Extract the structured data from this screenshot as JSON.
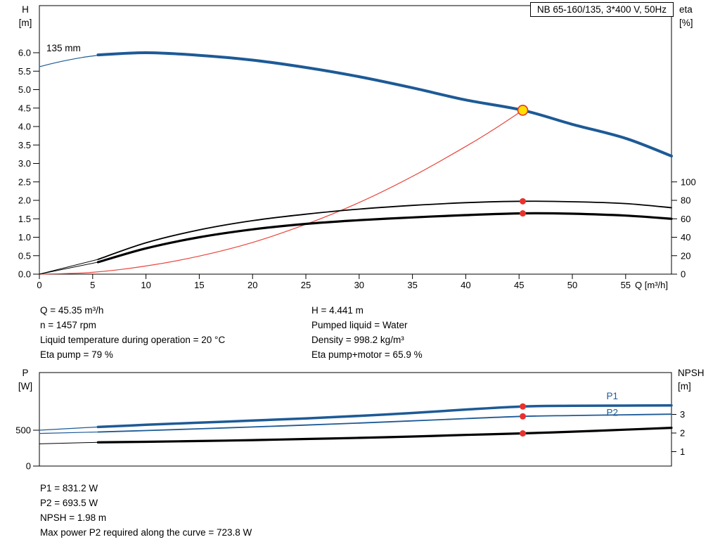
{
  "title_box": "NB 65-160/135, 3*400 V, 50Hz",
  "colors": {
    "curve_blue": "#1d5a96",
    "marker_red": "#e8322e",
    "duty_yellow": "#ffe000",
    "system_red": "#e8463c"
  },
  "chart_data": [
    {
      "type": "line",
      "name": "qh-eta-chart",
      "xlabel": "Q [m³/h]",
      "xlim": [
        0,
        59.3
      ],
      "x_ticks": [
        0,
        5,
        10,
        15,
        20,
        25,
        30,
        35,
        40,
        45,
        50,
        55
      ],
      "left_axis": {
        "label_top": "H",
        "label_unit": "[m]",
        "ticks": [
          "0.0",
          "0.5",
          "1.0",
          "1.5",
          "2.0",
          "2.5",
          "3.0",
          "3.5",
          "4.0",
          "4.5",
          "5.0",
          "5.5",
          "6.0"
        ]
      },
      "right_axis": {
        "label_top": "eta",
        "label_unit": "[%]",
        "ticks": [
          0,
          20,
          40,
          60,
          80,
          100
        ],
        "eta_100_at_H": 2.5
      },
      "impeller_label": "135 mm",
      "series": [
        {
          "name": "head-curve-lead",
          "color": "#1d5a96",
          "width": 1.2,
          "axis": "H",
          "x": [
            0,
            2,
            4,
            5.5
          ],
          "y": [
            5.62,
            5.76,
            5.87,
            5.93
          ]
        },
        {
          "name": "system-curve",
          "color": "#e8463c",
          "width": 1.2,
          "axis": "H",
          "x": [
            0,
            5,
            10,
            15,
            20,
            25,
            30,
            35,
            40,
            42.5,
            45.35
          ],
          "y": [
            0,
            0.05,
            0.22,
            0.49,
            0.86,
            1.35,
            1.94,
            2.65,
            3.46,
            3.9,
            4.441
          ]
        },
        {
          "name": "eta-pump-lead",
          "color": "#000000",
          "width": 1,
          "axis": "eta",
          "x": [
            0,
            5.5
          ],
          "y": [
            0,
            16
          ]
        },
        {
          "name": "eta-pump-motor-lead",
          "color": "#000000",
          "width": 1,
          "axis": "eta",
          "x": [
            0,
            5.5
          ],
          "y": [
            0,
            13
          ]
        },
        {
          "name": "eta-pump-curve",
          "color": "#000000",
          "width": 1.8,
          "axis": "eta",
          "x": [
            5.5,
            10,
            15,
            20,
            25,
            30,
            35,
            40,
            45.35,
            50,
            55,
            59.3
          ],
          "y": [
            16,
            34,
            48,
            58,
            65,
            70.5,
            74.5,
            77.5,
            79,
            78.5,
            76.5,
            72
          ]
        },
        {
          "name": "eta-pump-motor-curve",
          "color": "#000000",
          "width": 3.2,
          "axis": "eta",
          "x": [
            5.5,
            10,
            15,
            20,
            25,
            30,
            35,
            40,
            45.35,
            50,
            55,
            59.3
          ],
          "y": [
            13,
            28,
            40,
            48.5,
            54.5,
            58.5,
            61.5,
            64,
            65.9,
            65.5,
            63.5,
            60
          ]
        },
        {
          "name": "head-curve",
          "color": "#1d5a96",
          "width": 4,
          "axis": "H",
          "x": [
            5.5,
            10,
            15,
            20,
            25,
            30,
            35,
            40,
            45.35,
            50,
            55,
            59.3
          ],
          "y": [
            5.94,
            6.0,
            5.93,
            5.8,
            5.6,
            5.35,
            5.05,
            4.72,
            4.441,
            4.06,
            3.68,
            3.2
          ]
        }
      ],
      "duty_point": {
        "Q": 45.35,
        "H": 4.441
      },
      "eta_markers": [
        {
          "Q": 45.35,
          "eta": 79
        },
        {
          "Q": 45.35,
          "eta": 65.9
        }
      ]
    },
    {
      "type": "line",
      "name": "power-npsh-chart",
      "xlim": [
        0,
        59.3
      ],
      "left_axis": {
        "label_top": "P",
        "label_unit": "[W]",
        "ticks": [
          0,
          500
        ]
      },
      "right_axis": {
        "label_top": "NPSH",
        "label_unit": "[m]",
        "ticks": [
          1,
          2,
          3
        ]
      },
      "series": [
        {
          "name": "p1-lead",
          "color": "#1d5a96",
          "width": 1.2,
          "axis": "P",
          "x": [
            0,
            5.5
          ],
          "y": [
            500,
            545
          ]
        },
        {
          "name": "p2-lead",
          "color": "#1d5a96",
          "width": 1.2,
          "axis": "P",
          "x": [
            0,
            5.5
          ],
          "y": [
            455,
            475
          ]
        },
        {
          "name": "npsh-lead",
          "color": "#000000",
          "width": 1,
          "axis": "NPSH",
          "x": [
            0,
            5.5
          ],
          "y": [
            1.42,
            1.5
          ]
        },
        {
          "name": "p1-curve",
          "color": "#1d5a96",
          "width": 3.5,
          "axis": "P",
          "label": "P1",
          "x": [
            5.5,
            10,
            15,
            20,
            25,
            30,
            35,
            40,
            45.35,
            50,
            55,
            59.3
          ],
          "y": [
            545,
            575,
            605,
            635,
            665,
            700,
            740,
            788,
            831.2,
            840,
            843,
            845
          ]
        },
        {
          "name": "p2-curve",
          "color": "#1d5a96",
          "width": 1.8,
          "axis": "P",
          "label": "P2",
          "x": [
            5.5,
            10,
            15,
            20,
            25,
            30,
            35,
            40,
            45.35,
            50,
            55,
            59.3
          ],
          "y": [
            475,
            495,
            520,
            545,
            572,
            600,
            630,
            662,
            693.5,
            705,
            715,
            723.8
          ]
        },
        {
          "name": "npsh-curve",
          "color": "#000000",
          "width": 3.2,
          "axis": "NPSH",
          "x": [
            5.5,
            10,
            15,
            20,
            25,
            30,
            35,
            40,
            45.35,
            50,
            55,
            59.3
          ],
          "y": [
            1.5,
            1.53,
            1.57,
            1.62,
            1.68,
            1.74,
            1.81,
            1.9,
            1.98,
            2.07,
            2.18,
            2.28
          ]
        }
      ],
      "duty_markers": [
        {
          "Q": 45.35,
          "axis": "P",
          "value": 831.2
        },
        {
          "Q": 45.35,
          "axis": "P",
          "value": 693.5
        },
        {
          "Q": 45.35,
          "axis": "NPSH",
          "value": 1.98
        }
      ]
    }
  ],
  "info_left": {
    "line1": "Q = 45.35 m³/h",
    "line2": "n = 1457 rpm",
    "line3": "Liquid temperature during operation = 20 °C",
    "line4": "Eta pump = 79 %"
  },
  "info_right": {
    "line1": "H = 4.441 m",
    "line2": "Pumped liquid = Water",
    "line3": "Density = 998.2 kg/m³",
    "line4": "Eta pump+motor = 65.9 %"
  },
  "info_bottom": {
    "line1": "P1 = 831.2 W",
    "line2": "P2 = 693.5 W",
    "line3": "NPSH = 1.98 m",
    "line4": "Max power P2 required along the curve = 723.8 W"
  }
}
